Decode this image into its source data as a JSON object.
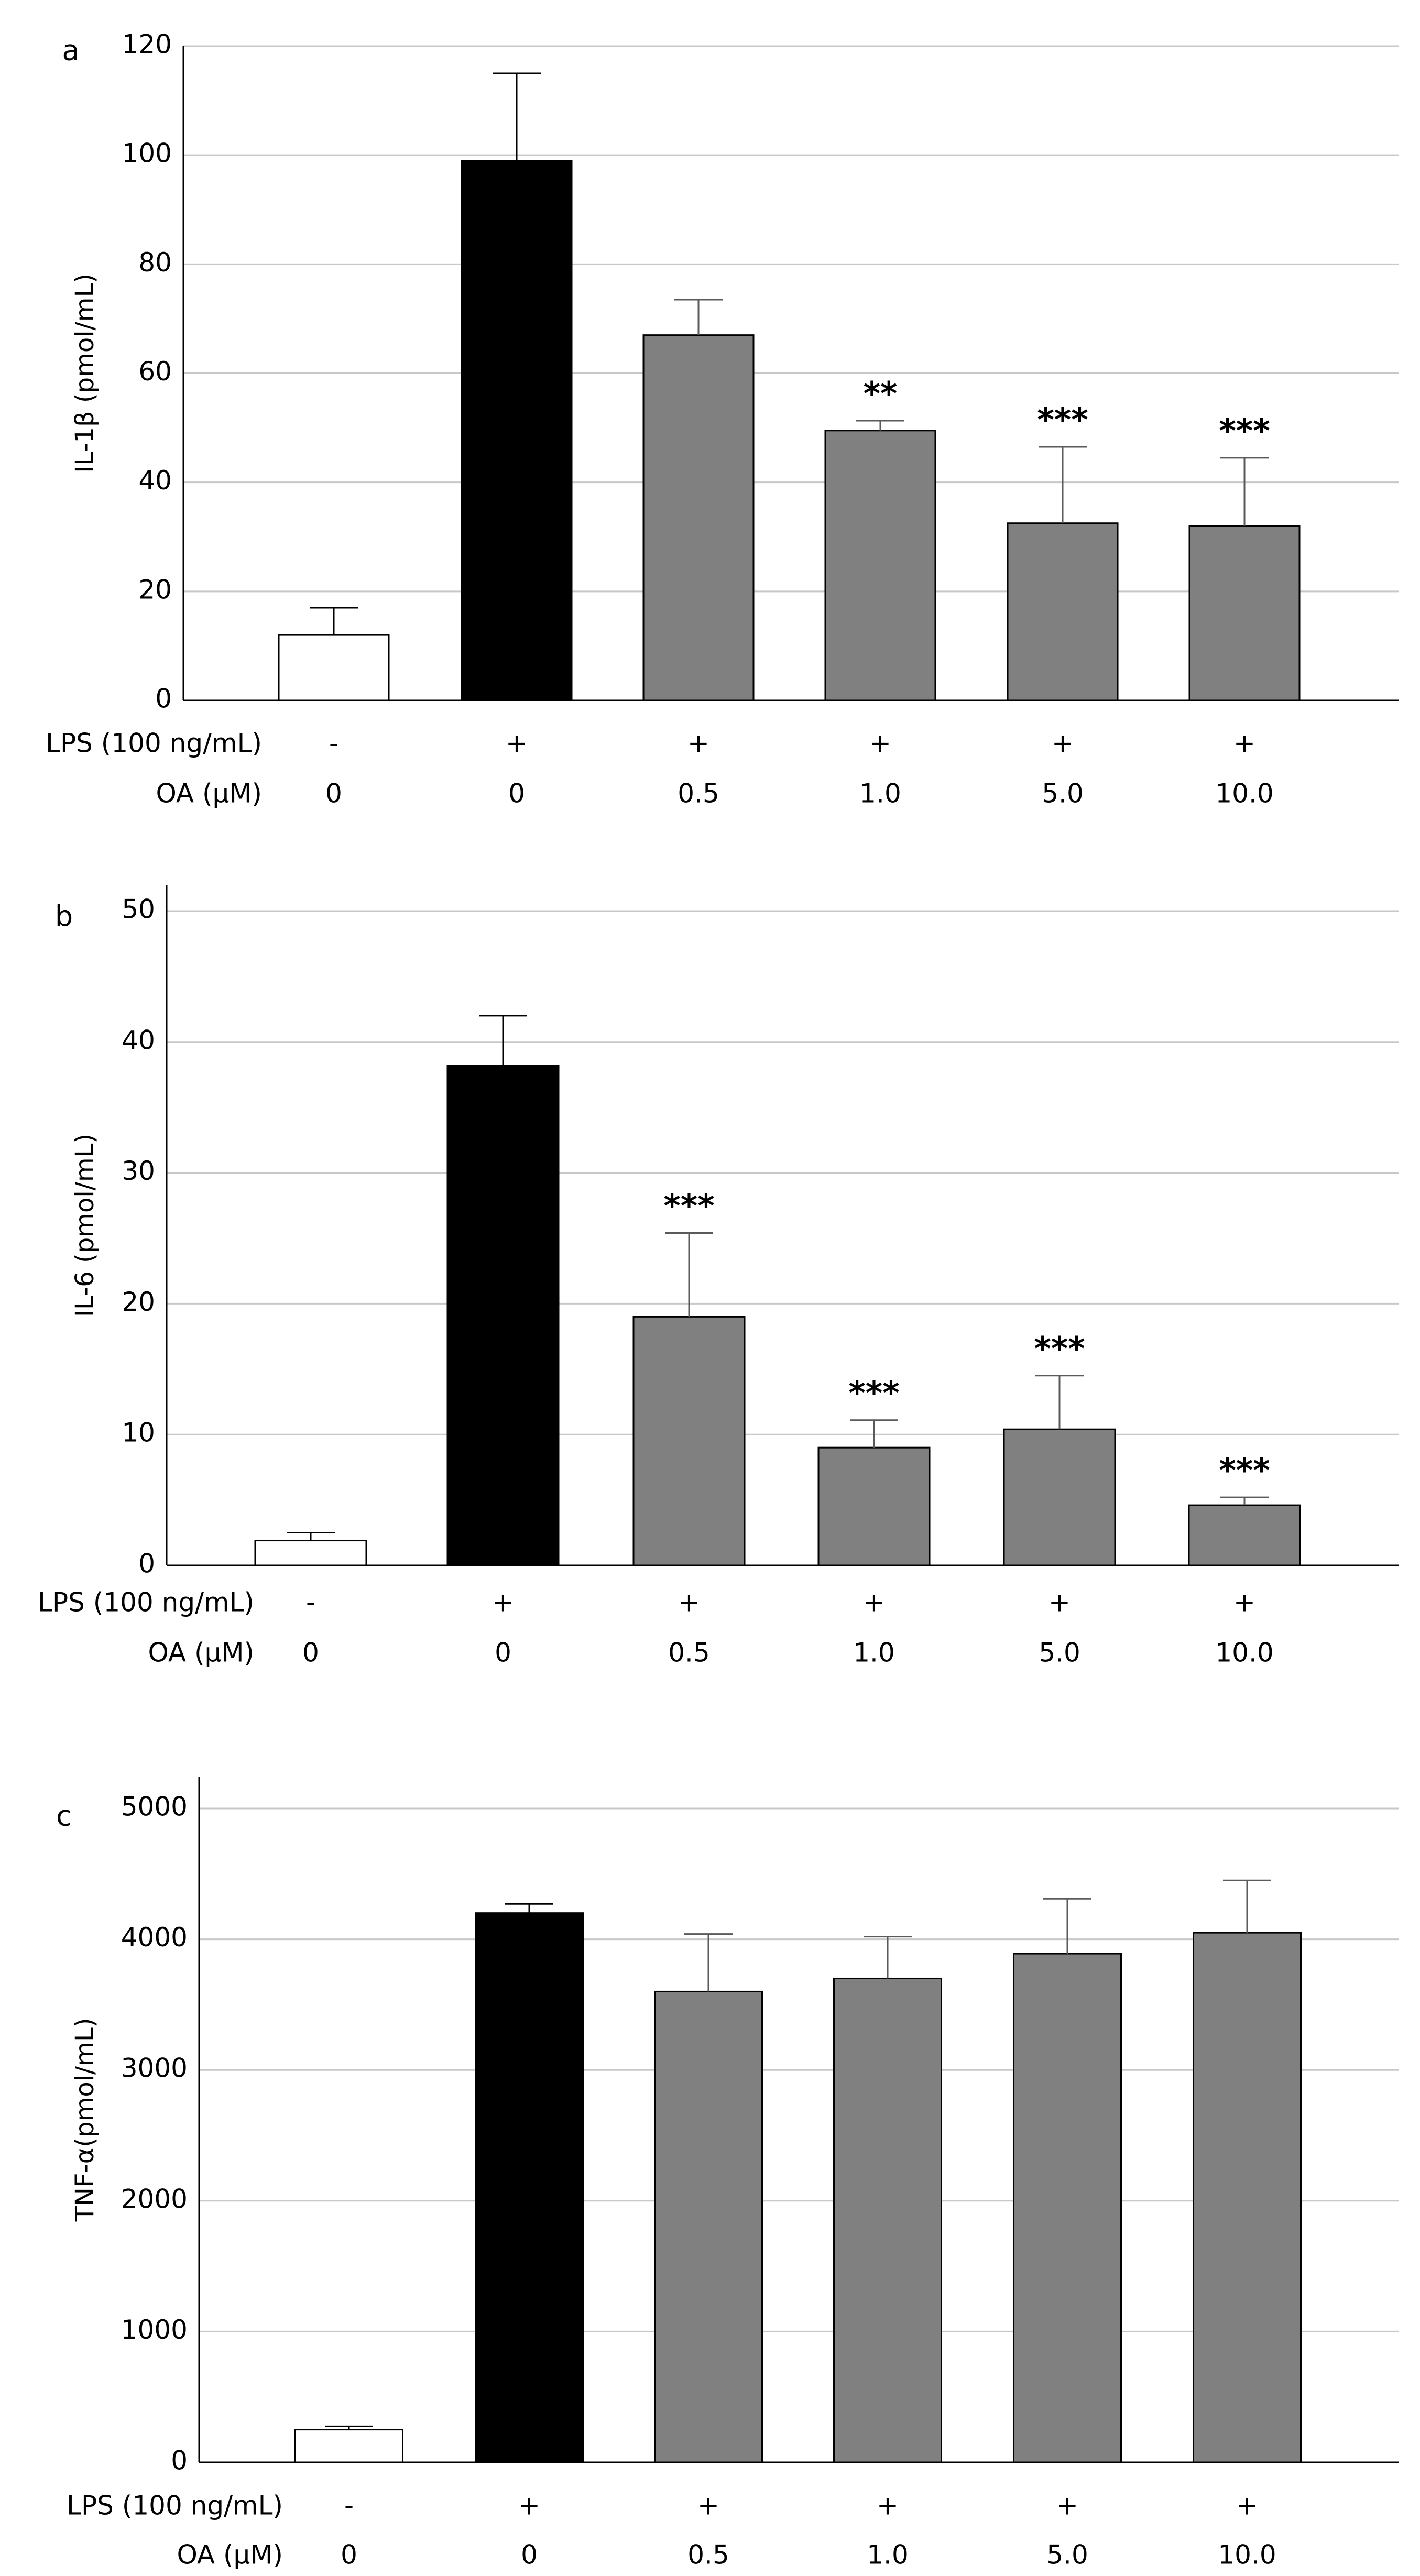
{
  "chart_data": [
    {
      "type": "bar",
      "panel": "a",
      "ylabel": "IL-1β (pmol/mL)",
      "ylim": [
        0,
        120
      ],
      "yticks": [
        "0",
        "20",
        "40",
        "60",
        "80",
        "100",
        "120"
      ],
      "grid": true,
      "rows": [
        {
          "label": "LPS (100 ng/mL)",
          "values": [
            "-",
            "+",
            "+",
            "+",
            "+",
            "+"
          ]
        },
        {
          "label": "OA (μM)",
          "values": [
            "0",
            "0",
            "0.5",
            "1.0",
            "5.0",
            "10.0"
          ]
        }
      ],
      "values": [
        12,
        99,
        67,
        49.5,
        32.5,
        32
      ],
      "errors": [
        5,
        16,
        6.5,
        1.8,
        14,
        12.5
      ],
      "fills": [
        "#ffffff",
        "#000000",
        "#808080",
        "#808080",
        "#808080",
        "#808080"
      ],
      "significance": [
        "",
        "",
        "",
        "**",
        "***",
        "***"
      ]
    },
    {
      "type": "bar",
      "panel": "b",
      "ylabel": "IL-6 (pmol/mL)",
      "ylim": [
        0,
        50
      ],
      "yticks": [
        "0",
        "10",
        "20",
        "30",
        "40",
        "50"
      ],
      "grid": true,
      "rows": [
        {
          "label": "LPS (100 ng/mL)",
          "values": [
            "-",
            "+",
            "+",
            "+",
            "+",
            "+"
          ]
        },
        {
          "label": "OA (μM)",
          "values": [
            "0",
            "0",
            "0.5",
            "1.0",
            "5.0",
            "10.0"
          ]
        }
      ],
      "values": [
        1.9,
        38.2,
        19,
        9,
        10.4,
        4.6
      ],
      "errors": [
        0.6,
        3.8,
        6.4,
        2.1,
        4.1,
        0.6
      ],
      "fills": [
        "#ffffff",
        "#000000",
        "#808080",
        "#808080",
        "#808080",
        "#808080"
      ],
      "significance": [
        "",
        "",
        "***",
        "***",
        "***",
        "***"
      ]
    },
    {
      "type": "bar",
      "panel": "c",
      "ylabel": "TNF-α(pmol/mL)",
      "ylim": [
        0,
        5000
      ],
      "yticks": [
        "0",
        "1000",
        "2000",
        "3000",
        "4000",
        "5000"
      ],
      "grid": true,
      "rows": [
        {
          "label": "LPS (100 ng/mL)",
          "values": [
            "-",
            "+",
            "+",
            "+",
            "+",
            "+"
          ]
        },
        {
          "label": "OA (μM)",
          "values": [
            "0",
            "0",
            "0.5",
            "1.0",
            "5.0",
            "10.0"
          ]
        }
      ],
      "values": [
        250,
        4200,
        3600,
        3700,
        3890,
        4050
      ],
      "errors": [
        25,
        70,
        440,
        320,
        420,
        400
      ],
      "fills": [
        "#ffffff",
        "#000000",
        "#808080",
        "#808080",
        "#808080",
        "#808080"
      ],
      "significance": [
        "",
        "",
        "",
        "",
        "",
        ""
      ]
    }
  ]
}
